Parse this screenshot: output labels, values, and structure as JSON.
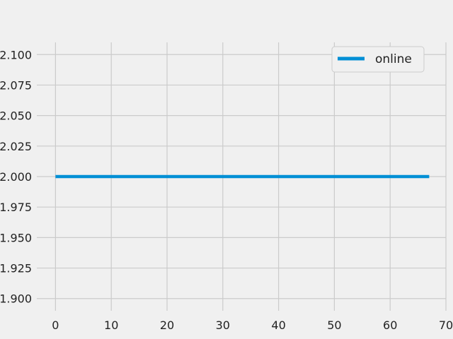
{
  "chart_data": {
    "type": "line",
    "title": "",
    "xlabel": "",
    "ylabel": "",
    "xlim": [
      -3.35,
      70
    ],
    "ylim": [
      1.89,
      2.11
    ],
    "x_ticks": [
      0,
      10,
      20,
      30,
      40,
      50,
      60,
      70
    ],
    "x_tick_labels": [
      "0",
      "10",
      "20",
      "30",
      "40",
      "50",
      "60",
      "70"
    ],
    "y_ticks": [
      1.9,
      1.925,
      1.95,
      1.975,
      2.0,
      2.025,
      2.05,
      2.075,
      2.1
    ],
    "y_tick_labels": [
      "1.900",
      "1.925",
      "1.950",
      "1.975",
      "2.000",
      "2.025",
      "2.050",
      "2.075",
      "2.100"
    ],
    "grid": true,
    "legend_position": "top-right",
    "series": [
      {
        "name": "online",
        "color": "#008fd5",
        "x": [
          0,
          67
        ],
        "y": [
          2.0,
          2.0
        ]
      }
    ]
  }
}
